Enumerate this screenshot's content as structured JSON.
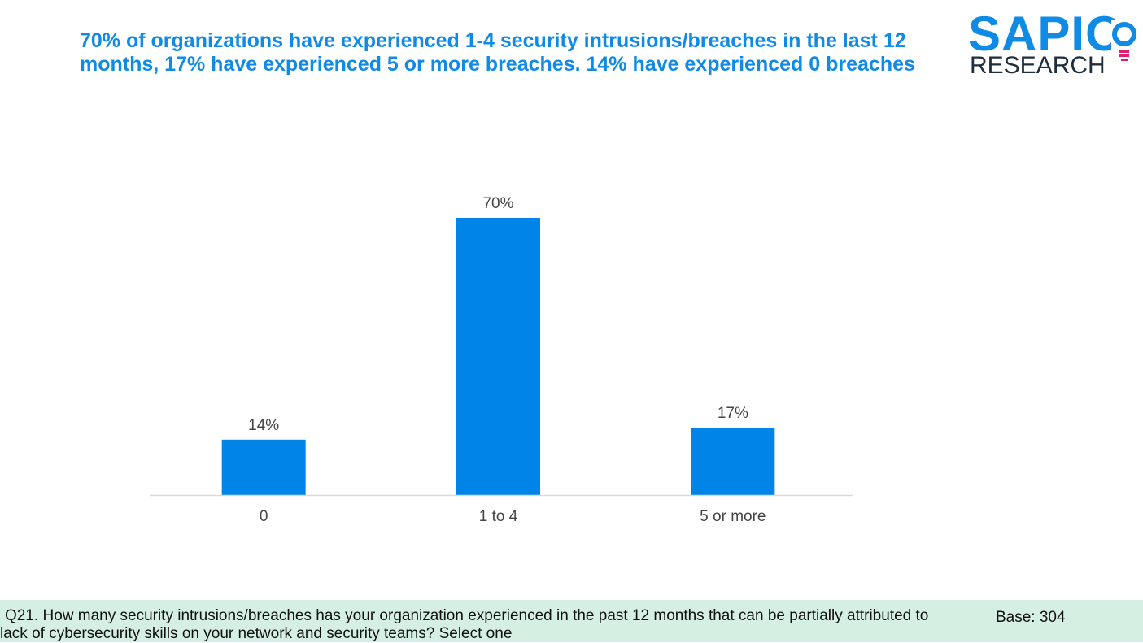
{
  "headline": "70% of organizations have experienced 1-4 security intrusions/breaches in the last 12 months, 17% have experienced 5 or more breaches. 14% have experienced 0 breaches",
  "logo": {
    "word": "SAPIO",
    "sub": "RESEARCH"
  },
  "colors": {
    "bar": "#0084e8",
    "headline": "#0f8be6",
    "axis": "#d9d9d9",
    "label": "#444444",
    "footer_bg": "#d5f0e2",
    "logo_bulb": "#e0206e"
  },
  "chart_data": {
    "type": "bar",
    "categories": [
      "0",
      "1 to 4",
      "5 or more"
    ],
    "values": [
      14,
      70,
      17
    ],
    "labels": [
      "14%",
      "70%",
      "17%"
    ],
    "title": "",
    "xlabel": "",
    "ylabel": "",
    "ylim": [
      0,
      80
    ],
    "grid": false,
    "legend": "none"
  },
  "footer": {
    "question": "Q21. How many security intrusions/breaches has your organization experienced in the past 12 months that can be partially attributed to lack of cybersecurity skills on your network and security teams? Select one",
    "base": "Base: 304"
  }
}
